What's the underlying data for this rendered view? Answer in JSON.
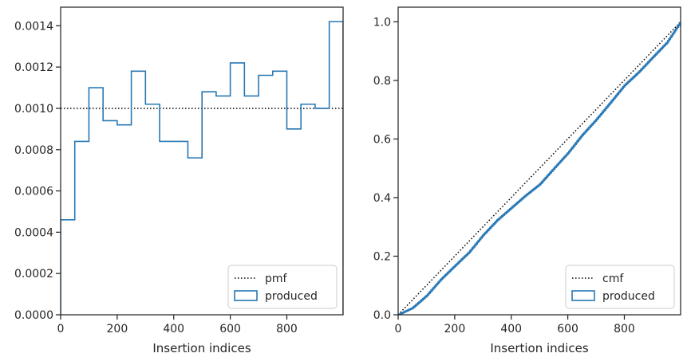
{
  "chart_data": [
    {
      "type": "histogram",
      "xlabel": "Insertion indices",
      "ylabel": "",
      "xlim": [
        0,
        999
      ],
      "ylim": [
        0,
        0.00149
      ],
      "xticks": [
        0,
        200,
        400,
        600,
        800
      ],
      "xtick_labels": [
        "0",
        "200",
        "400",
        "600",
        "800"
      ],
      "yticks": [
        0,
        0.0002,
        0.0004,
        0.0006,
        0.0008,
        0.001,
        0.0012,
        0.0014
      ],
      "ytick_labels": [
        "0.0000",
        "0.0002",
        "0.0004",
        "0.0006",
        "0.0008",
        "0.0010",
        "0.0012",
        "0.0014"
      ],
      "legend_position": "lower-right",
      "series": [
        {
          "name": "pmf",
          "kind": "line",
          "style": "dotted",
          "color": "#000000",
          "x": [
            0,
            999
          ],
          "values": [
            0.001,
            0.001
          ]
        },
        {
          "name": "produced",
          "kind": "step",
          "color": "#2878b5",
          "bin_edges": [
            0,
            50,
            100,
            150,
            200,
            250,
            300,
            350,
            400,
            450,
            500,
            550,
            600,
            650,
            700,
            750,
            800,
            850,
            900,
            950,
            999
          ],
          "values": [
            0.00046,
            0.00084,
            0.0011,
            0.00094,
            0.00092,
            0.00118,
            0.00102,
            0.00084,
            0.00084,
            0.00076,
            0.00108,
            0.00106,
            0.00122,
            0.00106,
            0.00116,
            0.00118,
            0.0009,
            0.00102,
            0.001,
            0.00142
          ]
        }
      ]
    },
    {
      "type": "line",
      "xlabel": "Insertion indices",
      "ylabel": "",
      "xlim": [
        0,
        999
      ],
      "ylim": [
        0,
        1.05
      ],
      "xticks": [
        0,
        200,
        400,
        600,
        800
      ],
      "xtick_labels": [
        "0",
        "200",
        "400",
        "600",
        "800"
      ],
      "yticks": [
        0,
        0.2,
        0.4,
        0.6,
        0.8,
        1.0
      ],
      "ytick_labels": [
        "0.0",
        "0.2",
        "0.4",
        "0.6",
        "0.8",
        "1.0"
      ],
      "legend_position": "lower-right",
      "series": [
        {
          "name": "cmf",
          "kind": "line",
          "style": "dotted",
          "color": "#000000",
          "x": [
            0,
            999
          ],
          "values": [
            0,
            1.0
          ]
        },
        {
          "name": "produced",
          "kind": "step",
          "color": "#2878b5",
          "x": [
            0,
            50,
            100,
            150,
            200,
            250,
            300,
            350,
            400,
            450,
            500,
            550,
            600,
            650,
            700,
            750,
            800,
            850,
            900,
            950,
            999
          ],
          "values": [
            0,
            0.023,
            0.065,
            0.12,
            0.167,
            0.213,
            0.272,
            0.323,
            0.365,
            0.407,
            0.445,
            0.499,
            0.552,
            0.613,
            0.666,
            0.724,
            0.783,
            0.828,
            0.879,
            0.929,
            1.0
          ]
        }
      ]
    }
  ]
}
